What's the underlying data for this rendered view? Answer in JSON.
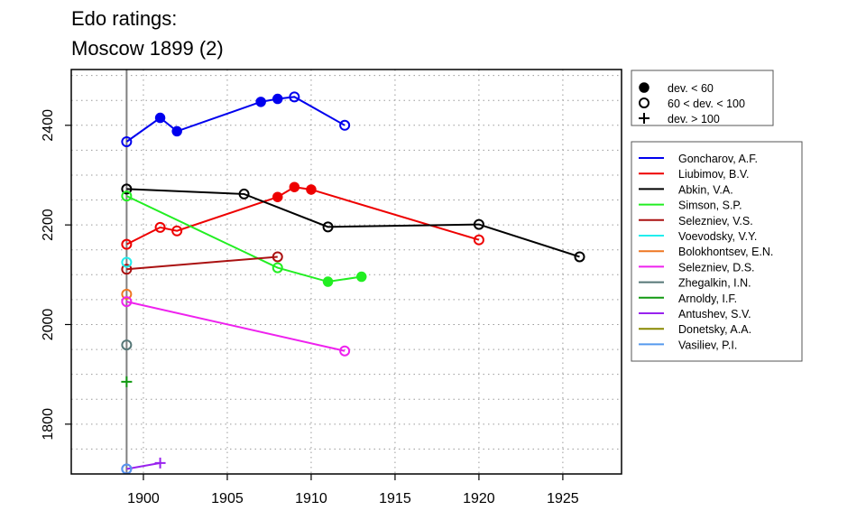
{
  "title": "Edo ratings:",
  "subtitle": "Moscow 1899 (2)",
  "chart_data": {
    "type": "line",
    "title": "Edo ratings:",
    "subtitle": "Moscow 1899 (2)",
    "xlabel": "",
    "ylabel": "",
    "xlim": [
      1895.7,
      1928.5
    ],
    "ylim": [
      1700,
      2512
    ],
    "x_ticks": [
      1900,
      1905,
      1910,
      1915,
      1920,
      1925
    ],
    "y_ticks": [
      1800,
      2000,
      2200,
      2400
    ],
    "grid": true,
    "reference_line_x": 1899,
    "marker_legend": [
      {
        "symbol": "filled",
        "label": "dev. < 60"
      },
      {
        "symbol": "open",
        "label": "60 < dev. < 100"
      },
      {
        "symbol": "plus",
        "label": "dev. > 100"
      }
    ],
    "series": [
      {
        "name": "Goncharov, A.F.",
        "color": "#0000ee",
        "points": [
          {
            "x": 1899,
            "y": 2367,
            "m": "open"
          },
          {
            "x": 1901,
            "y": 2415,
            "m": "filled"
          },
          {
            "x": 1902,
            "y": 2388,
            "m": "filled"
          },
          {
            "x": 1907,
            "y": 2447,
            "m": "filled"
          },
          {
            "x": 1908,
            "y": 2453,
            "m": "filled"
          },
          {
            "x": 1909,
            "y": 2457,
            "m": "open"
          },
          {
            "x": 1912,
            "y": 2400,
            "m": "open"
          }
        ]
      },
      {
        "name": "Liubimov, B.V.",
        "color": "#ee0000",
        "points": [
          {
            "x": 1899,
            "y": 2161,
            "m": "open"
          },
          {
            "x": 1901,
            "y": 2195,
            "m": "open"
          },
          {
            "x": 1902,
            "y": 2188,
            "m": "open"
          },
          {
            "x": 1908,
            "y": 2256,
            "m": "filled"
          },
          {
            "x": 1909,
            "y": 2276,
            "m": "filled"
          },
          {
            "x": 1910,
            "y": 2271,
            "m": "filled"
          },
          {
            "x": 1920,
            "y": 2170,
            "m": "open"
          }
        ]
      },
      {
        "name": "Abkin, V.A.",
        "color": "#000000",
        "points": [
          {
            "x": 1899,
            "y": 2272,
            "m": "open"
          },
          {
            "x": 1906,
            "y": 2262,
            "m": "open"
          },
          {
            "x": 1911,
            "y": 2196,
            "m": "open"
          },
          {
            "x": 1920,
            "y": 2201,
            "m": "open"
          },
          {
            "x": 1926,
            "y": 2136,
            "m": "open"
          }
        ]
      },
      {
        "name": "Simson, S.P.",
        "color": "#22ee22",
        "points": [
          {
            "x": 1899,
            "y": 2258,
            "m": "open"
          },
          {
            "x": 1908,
            "y": 2114,
            "m": "open"
          },
          {
            "x": 1911,
            "y": 2086,
            "m": "filled"
          },
          {
            "x": 1913,
            "y": 2096,
            "m": "filled"
          }
        ]
      },
      {
        "name": "Selezniev, V.S.",
        "color": "#aa1111",
        "points": [
          {
            "x": 1899,
            "y": 2111,
            "m": "open"
          },
          {
            "x": 1908,
            "y": 2136,
            "m": "open"
          }
        ]
      },
      {
        "name": "Voevodsky, V.Y.",
        "color": "#22eeee",
        "points": [
          {
            "x": 1899,
            "y": 2125,
            "m": "open"
          }
        ]
      },
      {
        "name": "Bolokhontsev, E.N.",
        "color": "#ee7722",
        "points": [
          {
            "x": 1899,
            "y": 2061,
            "m": "open"
          }
        ]
      },
      {
        "name": "Selezniev, D.S.",
        "color": "#ee22ee",
        "points": [
          {
            "x": 1899,
            "y": 2046,
            "m": "open"
          },
          {
            "x": 1912,
            "y": 1947,
            "m": "open"
          }
        ]
      },
      {
        "name": "Zhegalkin, I.N.",
        "color": "#557777",
        "points": [
          {
            "x": 1899,
            "y": 1959,
            "m": "open"
          }
        ]
      },
      {
        "name": "Arnoldy, I.F.",
        "color": "#119911",
        "points": [
          {
            "x": 1899,
            "y": 1885,
            "m": "plus"
          }
        ]
      },
      {
        "name": "Antushev, S.V.",
        "color": "#9922ee",
        "points": [
          {
            "x": 1899,
            "y": 1710,
            "m": "open"
          },
          {
            "x": 1901,
            "y": 1722,
            "m": "plus"
          }
        ]
      },
      {
        "name": "Donetsky, A.A.",
        "color": "#888800",
        "points": []
      },
      {
        "name": "Vasiliev, P.I.",
        "color": "#5599ee",
        "points": [
          {
            "x": 1899,
            "y": 1710,
            "m": "open"
          }
        ]
      }
    ]
  }
}
